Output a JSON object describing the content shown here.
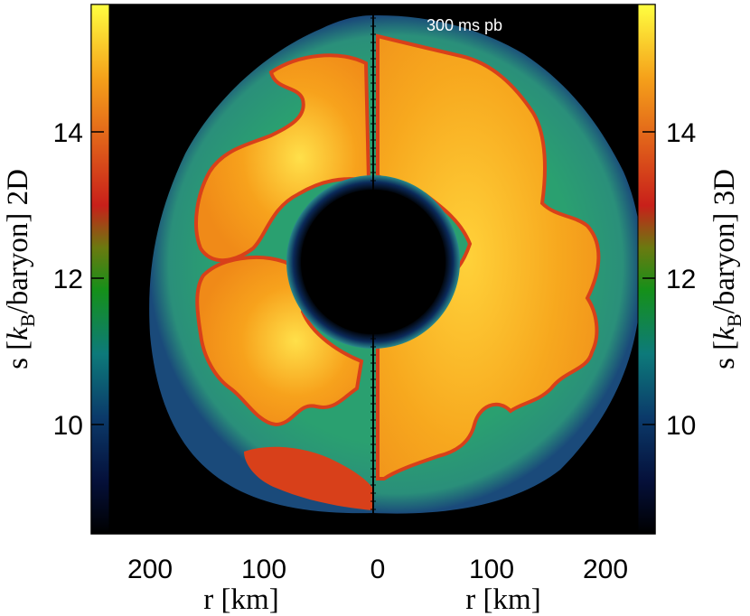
{
  "annotation": "300 ms pb",
  "left_colorbar": {
    "ticks": [
      "14",
      "12",
      "10"
    ],
    "label": {
      "prefix": "s [",
      "k": "k",
      "sub": "B",
      "suffix": "/baryon] 2D"
    }
  },
  "right_colorbar": {
    "ticks": [
      "14",
      "12",
      "10"
    ],
    "label": {
      "prefix": "s [",
      "k": "k",
      "sub": "B",
      "suffix": "/baryon] 3D"
    }
  },
  "x_axis_left": {
    "ticks": [
      "200",
      "100",
      "0"
    ],
    "label": "r [km]"
  },
  "x_axis_right": {
    "ticks": [
      "100",
      "200"
    ],
    "label": "r [km]"
  },
  "colors": {
    "background": "#000000",
    "shell_green": "#1f9a6a",
    "plume_red": "#d8401a",
    "plume_orange": "#f59a1a",
    "plume_yellow": "#ffd23a",
    "core_blue": "#0b2a5a"
  }
}
